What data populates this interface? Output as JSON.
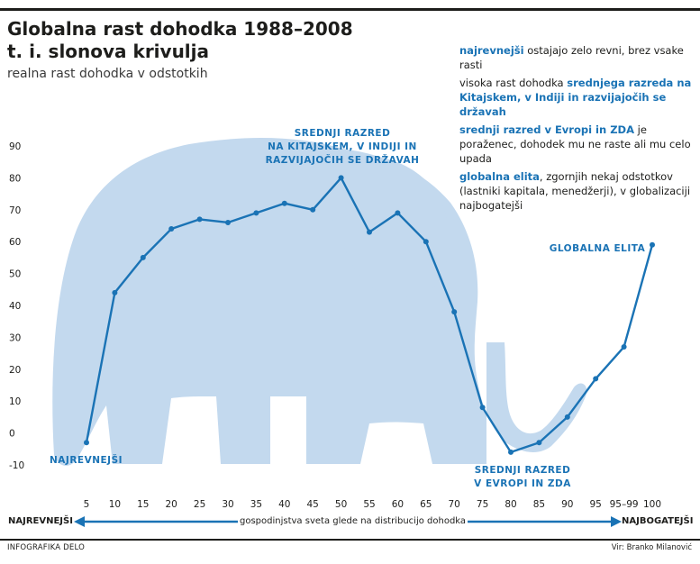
{
  "header": {
    "title_line1": "Globalna rast dohodka 1988–2008",
    "title_line2": "t. i. slonova krivulja",
    "subtitle": "realna rast dohodka v odstotkih"
  },
  "legend": [
    {
      "highlight": "najrevnejši",
      "text": " ostajajo zelo revni, brez vsake rasti",
      "highlight_first": true
    },
    {
      "highlight": "srednjega razreda na Kitajskem, v Indiji in razvijajočih se državah",
      "text": "visoka rast dohodka ",
      "highlight_first": false
    },
    {
      "highlight": "srednji razred v Evropi in ZDA",
      "text": " je poraženec, dohodek mu ne raste ali mu celo upada",
      "highlight_first": true
    },
    {
      "highlight": "globalna elita",
      "text": ", zgornjih nekaj odstotkov (lastniki kapitala, menedžerji), v globalizaciji najbogatejši",
      "highlight_first": true
    }
  ],
  "annotations": {
    "poorest": "NAJREVNEJŠI",
    "middle_asia_1": "SREDNJI RAZRED",
    "middle_asia_2": "NA KITAJSKEM, V INDIJI IN",
    "middle_asia_3": "RAZVIJAJOČIH SE DRŽAVAH",
    "middle_west_1": "SREDNJI RAZRED",
    "middle_west_2": "V EVROPI IN ZDA",
    "elite": "GLOBALNA ELITA"
  },
  "axis": {
    "left_label": "NAJREVNEJŠI",
    "right_label": "NAJBOGATEJŠI",
    "middle_label": "gospodinjstva sveta glede na distribucijo dohodka"
  },
  "footer": {
    "left": "INFOGRAFIKA DELO",
    "right": "Vir: Branko Milanović"
  },
  "colors": {
    "line": "#1a73b5",
    "elephant": "#c3d9ee",
    "text_highlight": "#1a73b5"
  },
  "chart_data": {
    "type": "line",
    "categories": [
      "5",
      "10",
      "15",
      "20",
      "25",
      "30",
      "35",
      "40",
      "45",
      "50",
      "55",
      "60",
      "65",
      "70",
      "75",
      "80",
      "85",
      "90",
      "95",
      "95–99",
      "100"
    ],
    "values": [
      -3,
      44,
      55,
      64,
      67,
      66,
      69,
      72,
      70,
      80,
      63,
      69,
      60,
      38,
      8,
      -6,
      -3,
      5,
      17,
      27,
      59
    ],
    "yticks": [
      -10,
      0,
      10,
      20,
      30,
      40,
      50,
      60,
      70,
      80,
      90
    ],
    "ylim": [
      -10,
      90
    ]
  }
}
